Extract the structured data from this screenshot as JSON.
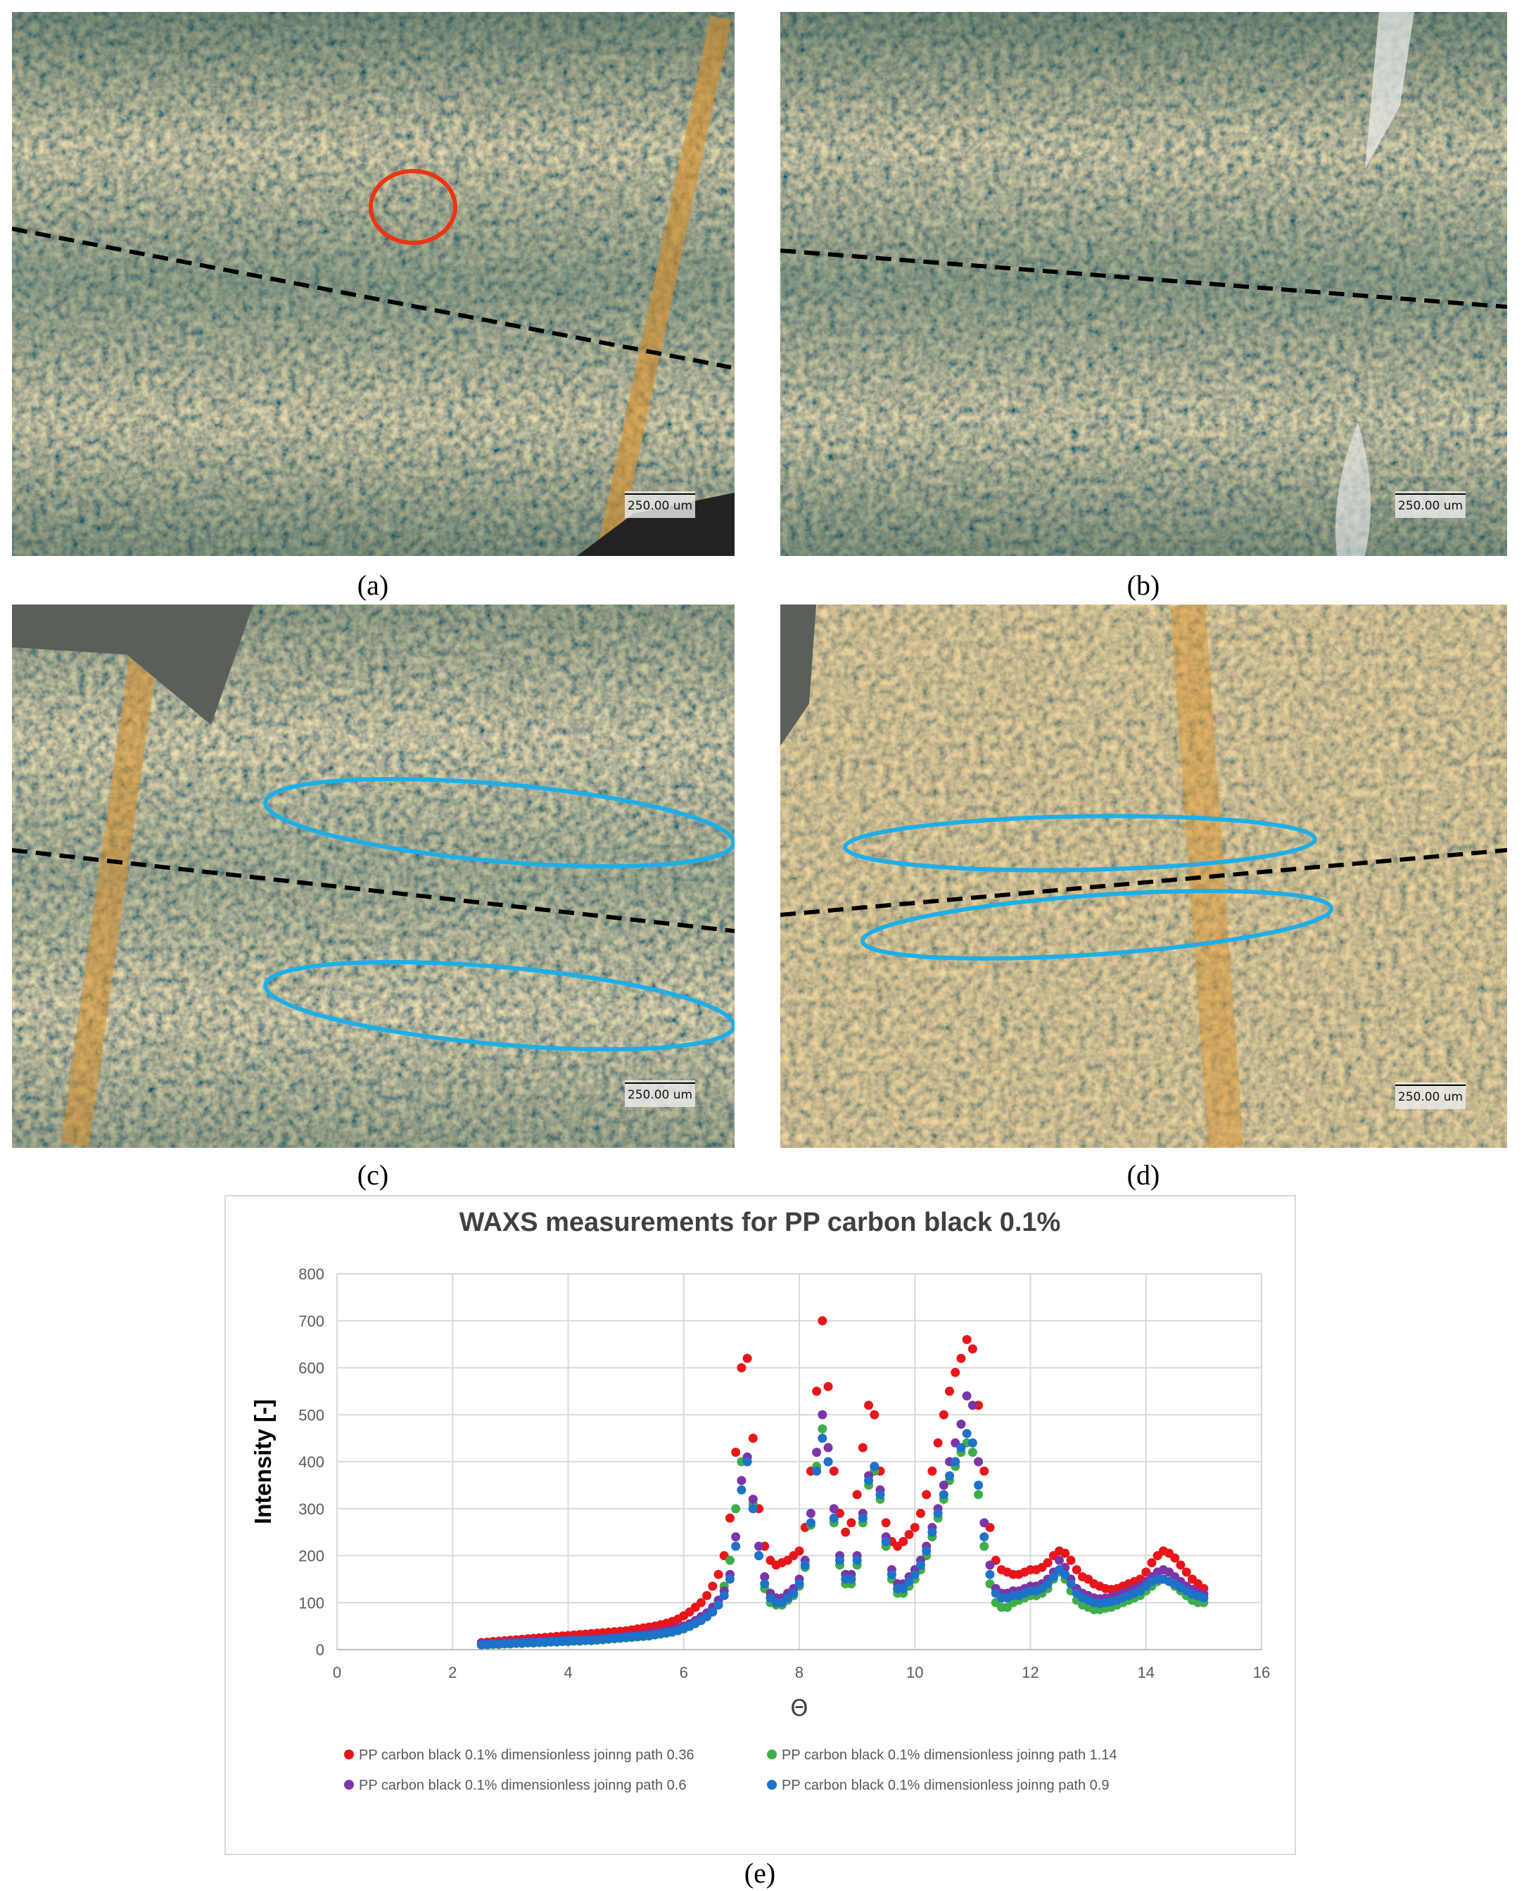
{
  "panels": [
    {
      "label": "(a)",
      "scale_bar": "250.00 um"
    },
    {
      "label": "(b)",
      "scale_bar": "250.00 um"
    },
    {
      "label": "(c)",
      "scale_bar": "250.00 um"
    },
    {
      "label": "(d)",
      "scale_bar": "250.00 um"
    }
  ],
  "chart_data": {
    "type": "scatter",
    "title": "WAXS measurements for PP carbon black 0.1%",
    "x_label": "Θ",
    "y_label": "Intensity [-]",
    "panel_label": "(e)",
    "xlim": [
      0,
      16
    ],
    "xticks": [
      0,
      2,
      4,
      6,
      8,
      10,
      12,
      14,
      16
    ],
    "ylim": [
      0,
      800
    ],
    "yticks": [
      0,
      100,
      200,
      300,
      400,
      500,
      600,
      700,
      800
    ],
    "grid": true,
    "legend": "bottom",
    "x": [
      2.5,
      2.6,
      2.7,
      2.8,
      2.9,
      3.0,
      3.1,
      3.2,
      3.3,
      3.4,
      3.5,
      3.6,
      3.7,
      3.8,
      3.9,
      4.0,
      4.1,
      4.2,
      4.3,
      4.4,
      4.5,
      4.6,
      4.7,
      4.8,
      4.9,
      5.0,
      5.1,
      5.2,
      5.3,
      5.4,
      5.5,
      5.6,
      5.7,
      5.8,
      5.9,
      6.0,
      6.1,
      6.2,
      6.3,
      6.4,
      6.5,
      6.6,
      6.7,
      6.8,
      6.9,
      7.0,
      7.1,
      7.2,
      7.3,
      7.4,
      7.5,
      7.6,
      7.7,
      7.8,
      7.9,
      8.0,
      8.1,
      8.2,
      8.3,
      8.4,
      8.5,
      8.6,
      8.7,
      8.8,
      8.9,
      9.0,
      9.1,
      9.2,
      9.3,
      9.4,
      9.5,
      9.6,
      9.7,
      9.8,
      9.9,
      10.0,
      10.1,
      10.2,
      10.3,
      10.4,
      10.5,
      10.6,
      10.7,
      10.8,
      10.9,
      11.0,
      11.1,
      11.2,
      11.3,
      11.4,
      11.5,
      11.6,
      11.7,
      11.8,
      11.9,
      12.0,
      12.1,
      12.2,
      12.3,
      12.4,
      12.5,
      12.6,
      12.7,
      12.8,
      12.9,
      13.0,
      13.1,
      13.2,
      13.3,
      13.4,
      13.5,
      13.6,
      13.7,
      13.8,
      13.9,
      14.0,
      14.1,
      14.2,
      14.3,
      14.4,
      14.5,
      14.6,
      14.7,
      14.8,
      14.9,
      15.0
    ],
    "series": [
      {
        "name": "PP carbon black 0.1% dimensionless joinng path 0.36",
        "color": "#e8161b",
        "values": [
          15,
          16,
          17,
          18,
          19,
          20,
          21,
          22,
          23,
          24,
          25,
          26,
          27,
          28,
          29,
          30,
          31,
          32,
          33,
          34,
          35,
          36,
          37,
          38,
          39,
          40,
          42,
          44,
          46,
          48,
          50,
          53,
          56,
          60,
          65,
          72,
          80,
          90,
          100,
          115,
          135,
          160,
          200,
          280,
          420,
          600,
          620,
          450,
          300,
          220,
          190,
          180,
          185,
          190,
          200,
          210,
          260,
          380,
          550,
          700,
          560,
          380,
          290,
          250,
          270,
          330,
          430,
          520,
          500,
          380,
          270,
          230,
          220,
          230,
          245,
          260,
          290,
          330,
          380,
          440,
          500,
          550,
          590,
          620,
          660,
          640,
          520,
          380,
          260,
          190,
          170,
          165,
          160,
          160,
          165,
          170,
          170,
          175,
          185,
          200,
          210,
          205,
          190,
          170,
          155,
          150,
          140,
          135,
          130,
          128,
          130,
          135,
          140,
          145,
          150,
          165,
          185,
          200,
          210,
          205,
          195,
          180,
          165,
          150,
          140,
          130
        ]
      },
      {
        "name": "PP carbon black 0.1% dimensionless joinng path 1.14",
        "color": "#3fae49",
        "values": [
          10,
          10,
          11,
          11,
          12,
          12,
          13,
          13,
          14,
          14,
          15,
          15,
          16,
          16,
          17,
          17,
          18,
          18,
          19,
          19,
          20,
          21,
          22,
          23,
          24,
          25,
          26,
          27,
          28,
          29,
          31,
          33,
          35,
          37,
          40,
          44,
          49,
          55,
          62,
          72,
          85,
          105,
          135,
          190,
          300,
          400,
          410,
          310,
          200,
          130,
          100,
          95,
          95,
          105,
          115,
          135,
          175,
          265,
          390,
          470,
          400,
          270,
          180,
          140,
          140,
          180,
          270,
          350,
          380,
          320,
          220,
          150,
          120,
          120,
          135,
          150,
          170,
          200,
          240,
          280,
          320,
          360,
          390,
          420,
          440,
          420,
          330,
          220,
          140,
          100,
          90,
          90,
          100,
          105,
          110,
          115,
          115,
          120,
          130,
          150,
          165,
          150,
          125,
          105,
          95,
          90,
          85,
          85,
          88,
          90,
          95,
          100,
          105,
          110,
          115,
          125,
          135,
          145,
          150,
          145,
          135,
          125,
          115,
          105,
          100,
          100
        ]
      },
      {
        "name": "PP carbon black 0.1% dimensionless joinng path 0.6",
        "color": "#7b35a8",
        "values": [
          12,
          13,
          13,
          14,
          14,
          15,
          16,
          16,
          17,
          17,
          18,
          18,
          19,
          19,
          20,
          20,
          21,
          21,
          22,
          22,
          23,
          24,
          25,
          26,
          27,
          28,
          30,
          31,
          32,
          34,
          36,
          38,
          40,
          43,
          46,
          50,
          55,
          62,
          70,
          78,
          90,
          105,
          125,
          160,
          240,
          360,
          410,
          320,
          220,
          155,
          120,
          110,
          110,
          120,
          130,
          150,
          190,
          290,
          420,
          500,
          430,
          300,
          200,
          160,
          160,
          200,
          290,
          370,
          390,
          340,
          240,
          170,
          140,
          140,
          155,
          170,
          190,
          220,
          260,
          300,
          350,
          400,
          440,
          480,
          540,
          520,
          400,
          270,
          180,
          130,
          120,
          120,
          125,
          125,
          130,
          135,
          135,
          140,
          150,
          165,
          190,
          175,
          150,
          130,
          120,
          115,
          110,
          108,
          110,
          112,
          115,
          120,
          125,
          130,
          135,
          145,
          155,
          165,
          170,
          165,
          155,
          145,
          135,
          128,
          122,
          118
        ]
      },
      {
        "name": "PP carbon black 0.1% dimensionless joinng path 0.9",
        "color": "#1d72c9",
        "values": [
          10,
          11,
          12,
          12,
          13,
          13,
          14,
          14,
          15,
          15,
          16,
          16,
          17,
          17,
          18,
          18,
          19,
          19,
          20,
          20,
          21,
          22,
          23,
          24,
          25,
          26,
          27,
          28,
          29,
          30,
          32,
          34,
          36,
          38,
          41,
          45,
          50,
          56,
          62,
          70,
          80,
          95,
          115,
          150,
          220,
          340,
          400,
          300,
          200,
          140,
          110,
          100,
          100,
          110,
          120,
          140,
          180,
          270,
          380,
          450,
          400,
          280,
          190,
          150,
          150,
          190,
          280,
          360,
          390,
          330,
          230,
          160,
          130,
          130,
          145,
          160,
          180,
          210,
          250,
          290,
          330,
          370,
          400,
          430,
          460,
          440,
          350,
          240,
          160,
          120,
          110,
          110,
          115,
          115,
          120,
          125,
          125,
          130,
          140,
          155,
          170,
          160,
          140,
          120,
          110,
          105,
          100,
          98,
          100,
          102,
          105,
          110,
          115,
          120,
          125,
          135,
          145,
          150,
          150,
          145,
          140,
          132,
          125,
          118,
          114,
          110
        ]
      }
    ]
  }
}
